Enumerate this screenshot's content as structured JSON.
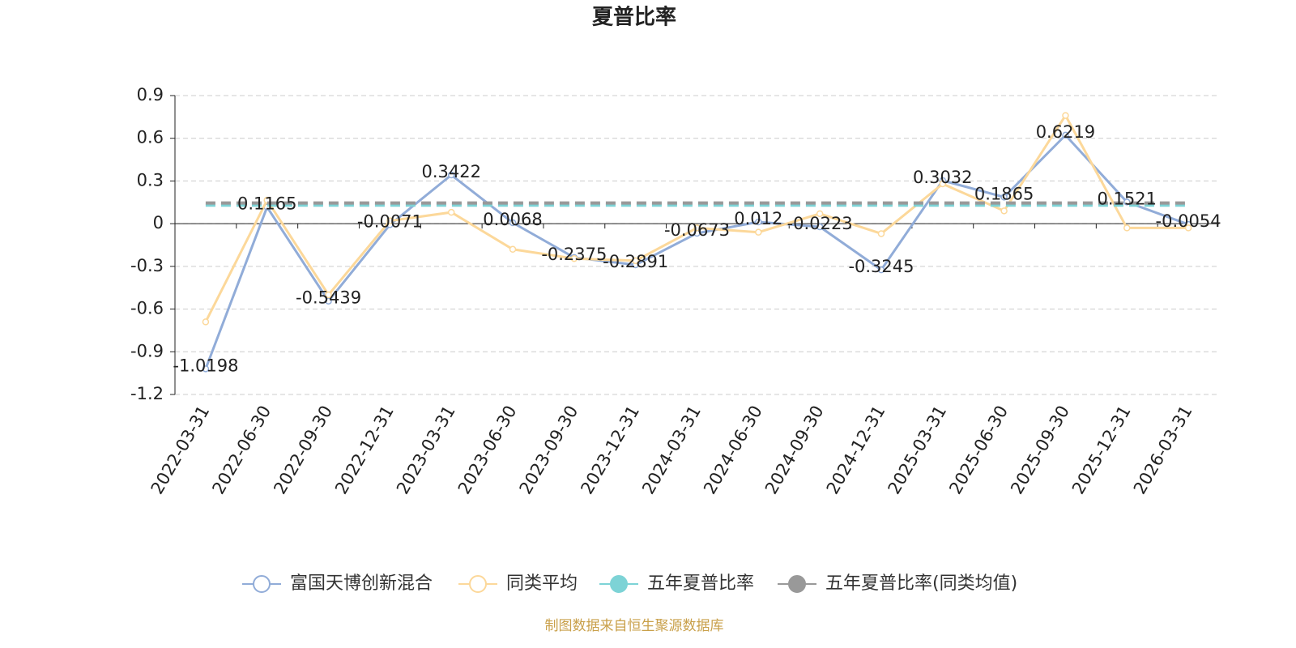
{
  "chart_data": {
    "type": "line",
    "title": "夏普比率",
    "categories": [
      "2022-03-31",
      "2022-06-30",
      "2022-09-30",
      "2022-12-31",
      "2023-03-31",
      "2023-06-30",
      "2023-09-30",
      "2023-12-31",
      "2024-03-31",
      "2024-06-30",
      "2024-09-30",
      "2024-12-31",
      "2025-03-31",
      "2025-06-30",
      "2025-09-30",
      "2025-12-31",
      "2026-03-31"
    ],
    "series": [
      {
        "name": "富国天博创新混合",
        "color": "#91acd8",
        "labels": true,
        "values": [
          -1.0198,
          0.1165,
          -0.5439,
          -0.0071,
          0.3422,
          0.0068,
          -0.2375,
          -0.2891,
          -0.0673,
          0.012,
          -0.0223,
          -0.3245,
          0.3032,
          0.1865,
          0.6219,
          0.1521,
          -0.0054
        ]
      },
      {
        "name": "同类平均",
        "color": "#fcd89a",
        "labels": false,
        "values": [
          -0.69,
          0.165,
          -0.5,
          0.02,
          0.08,
          -0.18,
          -0.245,
          -0.26,
          -0.03,
          -0.06,
          0.07,
          -0.07,
          0.28,
          0.09,
          0.76,
          -0.03,
          -0.03
        ]
      },
      {
        "name": "五年夏普比率",
        "color": "#7dd3d6",
        "reference": 0.13
      },
      {
        "name": "五年夏普比率(同类均值)",
        "color": "#999999",
        "reference": 0.145
      }
    ],
    "ylim": [
      -1.2,
      0.9
    ],
    "yticks": [
      -1.2,
      -0.9,
      -0.6,
      -0.3,
      0,
      0.3,
      0.6,
      0.9
    ],
    "grid": true,
    "source": "制图数据来自恒生聚源数据库"
  }
}
